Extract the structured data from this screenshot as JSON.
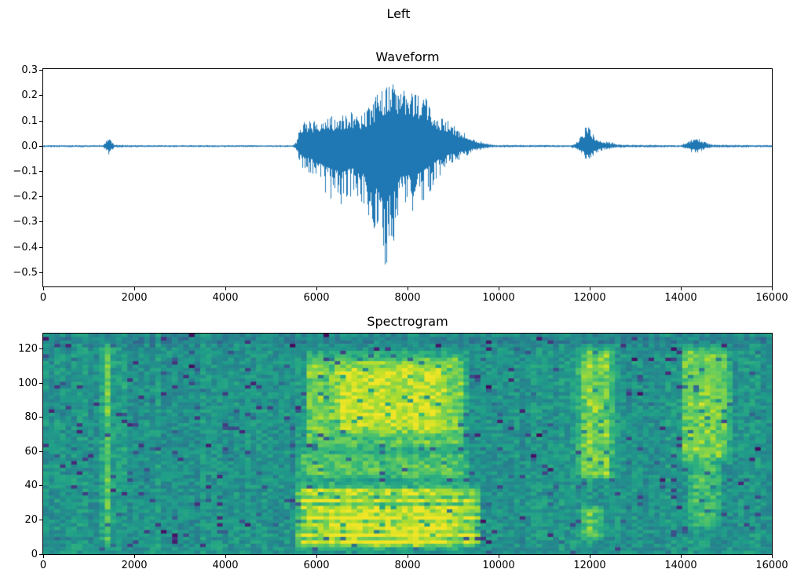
{
  "figure": {
    "title": "Left"
  },
  "chart_data": [
    {
      "type": "line",
      "title": "Waveform",
      "line_color": "#1f77b4",
      "x_range": [
        0,
        16000
      ],
      "y_range": [
        -0.555,
        0.305
      ],
      "x_ticks": [
        0,
        2000,
        4000,
        6000,
        8000,
        10000,
        12000,
        14000,
        16000
      ],
      "y_ticks": [
        0.3,
        0.2,
        0.1,
        0.0,
        -0.1,
        -0.2,
        -0.3,
        -0.4,
        -0.5
      ],
      "series_note": "mono audio amplitude envelope: [sample_index, positive_peak, negative_peak]",
      "envelope": [
        [
          0,
          0.004,
          -0.004
        ],
        [
          1300,
          0.004,
          -0.004
        ],
        [
          1380,
          0.02,
          -0.02
        ],
        [
          1430,
          0.045,
          -0.04
        ],
        [
          1490,
          0.022,
          -0.02
        ],
        [
          1560,
          0.006,
          -0.006
        ],
        [
          2000,
          0.004,
          -0.004
        ],
        [
          5480,
          0.004,
          -0.004
        ],
        [
          5560,
          0.02,
          -0.02
        ],
        [
          5620,
          0.09,
          -0.07
        ],
        [
          5750,
          0.1,
          -0.1
        ],
        [
          5950,
          0.11,
          -0.13
        ],
        [
          6150,
          0.12,
          -0.18
        ],
        [
          6350,
          0.12,
          -0.22
        ],
        [
          6550,
          0.13,
          -0.24
        ],
        [
          6750,
          0.14,
          -0.2
        ],
        [
          6950,
          0.13,
          -0.23
        ],
        [
          7150,
          0.16,
          -0.3
        ],
        [
          7350,
          0.21,
          -0.42
        ],
        [
          7480,
          0.24,
          -0.52
        ],
        [
          7620,
          0.27,
          -0.46
        ],
        [
          7760,
          0.23,
          -0.35
        ],
        [
          7900,
          0.22,
          -0.26
        ],
        [
          8100,
          0.23,
          -0.28
        ],
        [
          8300,
          0.21,
          -0.24
        ],
        [
          8500,
          0.17,
          -0.18
        ],
        [
          8700,
          0.12,
          -0.12
        ],
        [
          8900,
          0.1,
          -0.08
        ],
        [
          9100,
          0.07,
          -0.06
        ],
        [
          9300,
          0.05,
          -0.04
        ],
        [
          9500,
          0.03,
          -0.02
        ],
        [
          9700,
          0.012,
          -0.01
        ],
        [
          9900,
          0.005,
          -0.005
        ],
        [
          11600,
          0.004,
          -0.004
        ],
        [
          11750,
          0.02,
          -0.02
        ],
        [
          11870,
          0.06,
          -0.05
        ],
        [
          11960,
          0.09,
          -0.08
        ],
        [
          12060,
          0.05,
          -0.05
        ],
        [
          12160,
          0.04,
          -0.03
        ],
        [
          12300,
          0.02,
          -0.015
        ],
        [
          12500,
          0.015,
          -0.01
        ],
        [
          12700,
          0.006,
          -0.006
        ],
        [
          14000,
          0.004,
          -0.004
        ],
        [
          14120,
          0.015,
          -0.012
        ],
        [
          14260,
          0.03,
          -0.026
        ],
        [
          14420,
          0.03,
          -0.026
        ],
        [
          14560,
          0.015,
          -0.012
        ],
        [
          14700,
          0.006,
          -0.006
        ],
        [
          16000,
          0.004,
          -0.004
        ]
      ]
    },
    {
      "type": "heatmap",
      "title": "Spectrogram",
      "colormap": "viridis",
      "x_range": [
        0,
        16000
      ],
      "y_range": [
        0,
        129
      ],
      "x_ticks": [
        0,
        2000,
        4000,
        6000,
        8000,
        10000,
        12000,
        14000,
        16000
      ],
      "y_ticks": [
        0,
        20,
        40,
        60,
        80,
        100,
        120
      ],
      "base_level": 0.52,
      "noise_amplitude": 0.09,
      "viridis_stops": [
        "#440154",
        "#482878",
        "#3e4a89",
        "#31688e",
        "#26828e",
        "#1f9e89",
        "#35b779",
        "#6ece58",
        "#b5de2b",
        "#fde725"
      ],
      "energy_regions_note": "bright/dark patches: x = sample range, f = frequency-bin range, i = intensity delta",
      "energy_regions": [
        {
          "x": [
            1280,
            1560
          ],
          "f": [
            4,
            126
          ],
          "i": 0.26
        },
        {
          "x": [
            1620,
            1860
          ],
          "f": [
            30,
            118
          ],
          "i": 0.13
        },
        {
          "x": [
            5520,
            9650
          ],
          "f": [
            2,
            42
          ],
          "i": 0.38,
          "harmonics": true
        },
        {
          "x": [
            5560,
            9400
          ],
          "f": [
            42,
            62
          ],
          "i": 0.2
        },
        {
          "x": [
            5700,
            9350
          ],
          "f": [
            60,
            118
          ],
          "i": 0.26
        },
        {
          "x": [
            6400,
            8900
          ],
          "f": [
            68,
            112
          ],
          "i": 0.13
        },
        {
          "x": [
            6200,
            9100
          ],
          "f": [
            2,
            28
          ],
          "i": 0.1
        },
        {
          "x": [
            5800,
            9500
          ],
          "f": [
            65,
            73
          ],
          "i": -0.16
        },
        {
          "x": [
            11680,
            12580
          ],
          "f": [
            42,
            122
          ],
          "i": 0.28
        },
        {
          "x": [
            11750,
            12350
          ],
          "f": [
            6,
            30
          ],
          "i": 0.24
        },
        {
          "x": [
            13950,
            15150
          ],
          "f": [
            52,
            122
          ],
          "i": 0.26
        },
        {
          "x": [
            14150,
            14950
          ],
          "f": [
            14,
            56
          ],
          "i": 0.16
        },
        {
          "x": [
            0,
            16000
          ],
          "f": [
            121,
            129
          ],
          "i": -0.13
        }
      ]
    }
  ]
}
